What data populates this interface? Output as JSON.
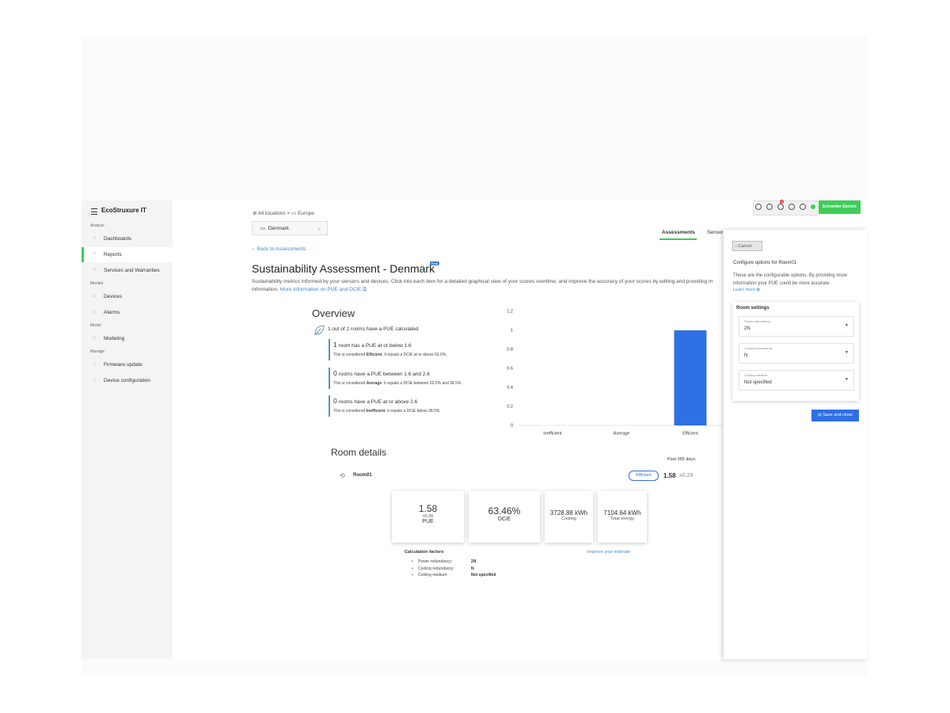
{
  "header": {
    "logo": "EcoStruxure IT",
    "notifications": "3",
    "brand": "Schneider Electric"
  },
  "sidebar": {
    "sections": [
      {
        "label": "Analyze",
        "items": [
          "Dashboards",
          "Reports",
          "Services and Warranties"
        ]
      },
      {
        "label": "Monitor",
        "items": [
          "Devices",
          "Alarms"
        ]
      },
      {
        "label": "Model",
        "items": [
          "Modeling"
        ]
      },
      {
        "label": "Manage",
        "items": [
          "Firmware update",
          "Device configuration"
        ]
      }
    ]
  },
  "breadcrumb": [
    "All locations",
    "Europe"
  ],
  "location_select": "Denmark",
  "tabs": [
    "Assessments",
    "Sensor"
  ],
  "back_link": "Back to Assessments",
  "title": "Sustainability Assessment - Denmark",
  "badge": "Beta",
  "description": "Sustainability metrics informed by your sensors and devices. Click into each item for a detailed graphical view of your scores overtime, and improve the accuracy of your scores by editing and providing m",
  "description_end": "information.",
  "info_link": "More information on PUE and DCiE",
  "overview": {
    "title": "Overview",
    "summary": "1 out of 2 rooms have a PUE calculated",
    "items": [
      {
        "count": "1",
        "text": "room has a PUE at or below 1.6",
        "note_pre": "This is considered",
        "note_bold": "Efficient",
        "note_post": ". It equals a DCiE at or above 62.5%."
      },
      {
        "count": "0",
        "text": "rooms have a PUE between 1.6 and 2.6",
        "note_pre": "This is considered",
        "note_bold": "Average",
        "note_post": ". It equals a DCiE between 62.5% and 38.5%."
      },
      {
        "count": "0",
        "text": "rooms have a PUE at or above 2.6",
        "note_pre": "This is considered",
        "note_bold": "Inefficient",
        "note_post": ". It equals a DCiE below 38.5%."
      }
    ]
  },
  "chart_data": {
    "type": "bar",
    "categories": [
      "Inefficient",
      "Average",
      "Efficient"
    ],
    "values": [
      0,
      0,
      1
    ],
    "color": "#2f6fe4",
    "ylim": [
      0,
      1.2
    ],
    "yticks": [
      0,
      0.2,
      0.4,
      0.6,
      0.8,
      1,
      1.2
    ],
    "grid": false
  },
  "room_details": {
    "title": "Room details",
    "period": "Past 365 days:",
    "room": "Room01",
    "rating": "Efficient",
    "pue": "1.58",
    "pue_error": "±0.26",
    "cards": [
      {
        "value": "1.58",
        "sub": "±0.26",
        "label": "PUE"
      },
      {
        "value": "63.46%",
        "label": "DCiE"
      },
      {
        "value": "3728.88 kWh",
        "label": "Cooling"
      },
      {
        "value": "7104.64 kWh",
        "label": "Total energy"
      }
    ],
    "factors_title": "Calculation factors",
    "improve_link": "Improve your estimate",
    "factors": [
      [
        "Power redundancy:",
        "2N"
      ],
      [
        "Cooling redundancy:",
        "N"
      ],
      [
        "Cooling medium:",
        "Not specified"
      ]
    ]
  },
  "panel": {
    "cancel": "Cancel",
    "title": "Configure options for Room01",
    "description": "These are the configurable options. By providing more information your PUE could be more accurate.",
    "learn_more": "Learn more",
    "settings_title": "Room settings",
    "fields": [
      {
        "label": "Power redundancy",
        "value": "2N"
      },
      {
        "label": "Cooling redundancy",
        "value": "N"
      },
      {
        "label": "Cooling medium",
        "value": "Not specified"
      }
    ],
    "save": "Save and close"
  }
}
